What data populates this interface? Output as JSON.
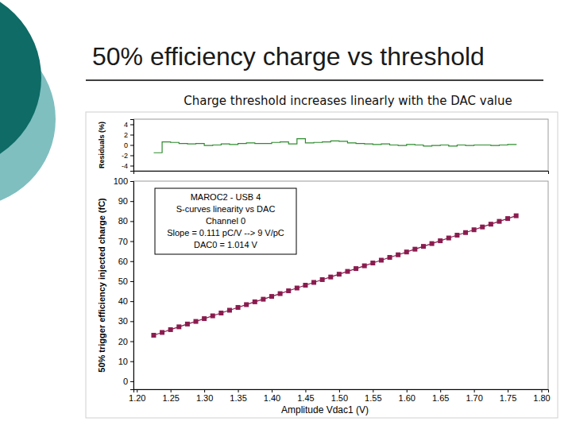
{
  "chart_data": [
    {
      "type": "line",
      "title": "50% efficiency charge vs threshold",
      "subtitle": "Charge threshold increases linearly with the DAC value",
      "y_label": "Residuals (%)",
      "x": [
        1.225,
        1.2375,
        1.25,
        1.2625,
        1.275,
        1.2875,
        1.3,
        1.3125,
        1.325,
        1.3375,
        1.35,
        1.3625,
        1.375,
        1.3875,
        1.4,
        1.4125,
        1.425,
        1.4375,
        1.45,
        1.4625,
        1.475,
        1.4875,
        1.5,
        1.5125,
        1.525,
        1.5375,
        1.55,
        1.5625,
        1.575,
        1.5875,
        1.6,
        1.6125,
        1.625,
        1.6375,
        1.65,
        1.6625,
        1.675,
        1.6875,
        1.7,
        1.7125,
        1.725,
        1.7375,
        1.75,
        1.7625
      ],
      "values": [
        -1.5,
        0.6,
        0.5,
        0.3,
        0.2,
        0.3,
        -0.1,
        0.0,
        0.2,
        0.1,
        0.3,
        0.4,
        0.3,
        0.3,
        0.5,
        0.6,
        0.2,
        1.2,
        0.4,
        0.5,
        0.6,
        0.8,
        0.7,
        0.4,
        0.3,
        0.2,
        0.1,
        0.2,
        0.0,
        -0.1,
        0.1,
        0.0,
        -0.2,
        -0.1,
        0.0,
        -0.2,
        0.0,
        -0.1,
        0.0,
        0.0,
        -0.1,
        0.0,
        0.1,
        0.0
      ],
      "color": "#2e8b2e",
      "line_style": "step",
      "xlim": [
        1.195,
        1.81
      ],
      "ylim": [
        -5,
        5
      ],
      "yticks": [
        -4,
        -2,
        0,
        2,
        4
      ],
      "tick_labels": "y",
      "grid": false
    },
    {
      "type": "line",
      "x_label": "Amplitude Vdac1 (V)",
      "y_label": "50% trigger efficiency injected charge (fC)",
      "annotations": [
        "MAROC2 - USB 4",
        "S-curves linearity vs DAC",
        "Channel 0",
        "Slope = 0.111 pC/V --> 9 V/pC",
        "DAC0 = 1.014 V"
      ],
      "x": [
        1.225,
        1.2375,
        1.25,
        1.2625,
        1.275,
        1.2875,
        1.3,
        1.3125,
        1.325,
        1.3375,
        1.35,
        1.3625,
        1.375,
        1.3875,
        1.4,
        1.4125,
        1.425,
        1.4375,
        1.45,
        1.4625,
        1.475,
        1.4875,
        1.5,
        1.5125,
        1.525,
        1.5375,
        1.55,
        1.5625,
        1.575,
        1.5875,
        1.6,
        1.6125,
        1.625,
        1.6375,
        1.65,
        1.6625,
        1.675,
        1.6875,
        1.7,
        1.7125,
        1.725,
        1.7375,
        1.75,
        1.7625
      ],
      "values": [
        23.0,
        24.4,
        25.8,
        27.2,
        28.6,
        29.9,
        31.3,
        32.7,
        34.1,
        35.5,
        36.9,
        38.3,
        39.7,
        41.0,
        42.4,
        43.8,
        45.2,
        46.6,
        48.0,
        49.4,
        50.8,
        52.1,
        53.5,
        54.9,
        56.3,
        57.7,
        59.1,
        60.5,
        61.9,
        63.2,
        64.6,
        66.0,
        67.4,
        68.8,
        70.2,
        71.6,
        73.0,
        74.3,
        75.7,
        77.1,
        78.5,
        79.9,
        81.3,
        82.7
      ],
      "color": "#8b1c4f",
      "marker": "square",
      "line_style": "solid",
      "xlim": [
        1.195,
        1.81
      ],
      "ylim": [
        -4,
        100
      ],
      "xticks": [
        {
          "value": 1.2,
          "label": "1.20"
        },
        1.25,
        {
          "value": 1.3,
          "label": "1.30"
        },
        1.35,
        {
          "value": 1.4,
          "label": "1.40"
        },
        1.45,
        {
          "value": 1.5,
          "label": "1.50"
        },
        1.55,
        {
          "value": 1.6,
          "label": "1.60"
        },
        1.65,
        {
          "value": 1.7,
          "label": "1.70"
        },
        1.75,
        {
          "value": 1.8,
          "label": "1.80"
        }
      ],
      "yticks": [
        0,
        10,
        20,
        30,
        40,
        50,
        60,
        70,
        80,
        90,
        100
      ],
      "grid": false
    }
  ]
}
